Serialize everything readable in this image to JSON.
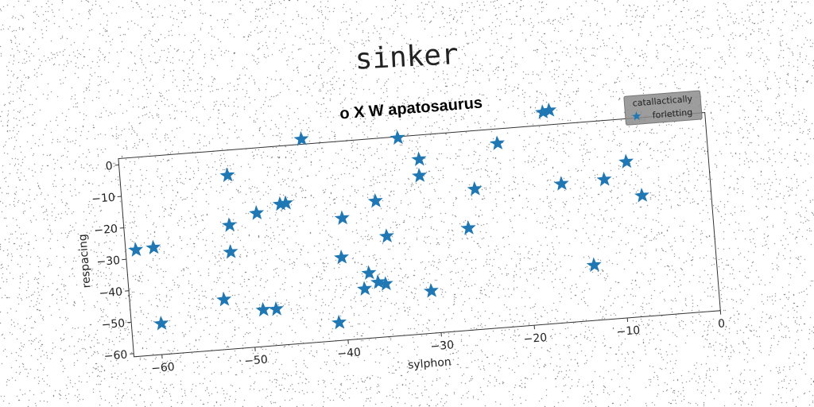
{
  "suptitle": "sinker",
  "chart_data": {
    "type": "scatter",
    "title": "o X W apatosaurus",
    "xlabel": "sylphon",
    "ylabel": "respacing",
    "xlim": [
      -63,
      0
    ],
    "ylim": [
      -61,
      2
    ],
    "xticks": [
      -60,
      -50,
      -40,
      -30,
      -20,
      -10,
      0
    ],
    "yticks": [
      0,
      -10,
      -20,
      -30,
      -40,
      -50,
      -60
    ],
    "grid": false,
    "legend": {
      "title": "catallactically",
      "placement": "top-right"
    },
    "series": [
      {
        "name": "forletting",
        "marker": "star",
        "color": "#1f77b4",
        "points": [
          {
            "x": -61.9,
            "y": -27.3
          },
          {
            "x": -60.0,
            "y": -27.0
          },
          {
            "x": -59.8,
            "y": -51.2
          },
          {
            "x": -52.9,
            "y": -45.2
          },
          {
            "x": -51.8,
            "y": -30.3
          },
          {
            "x": -51.7,
            "y": -21.8
          },
          {
            "x": -51.5,
            "y": -6.0
          },
          {
            "x": -48.7,
            "y": -18.7
          },
          {
            "x": -48.8,
            "y": -49.4
          },
          {
            "x": -47.4,
            "y": -49.5
          },
          {
            "x": -46.1,
            "y": -16.4
          },
          {
            "x": -45.5,
            "y": -16.3
          },
          {
            "x": -43.3,
            "y": 3.6
          },
          {
            "x": -40.8,
            "y": -55.3
          },
          {
            "x": -40.0,
            "y": -34.8
          },
          {
            "x": -39.6,
            "y": -22.4
          },
          {
            "x": -37.8,
            "y": -45.3
          },
          {
            "x": -37.2,
            "y": -40.4
          },
          {
            "x": -36.3,
            "y": -43.5
          },
          {
            "x": -35.9,
            "y": -17.8
          },
          {
            "x": -35.5,
            "y": -44.3
          },
          {
            "x": -35.0,
            "y": -29.2
          },
          {
            "x": -33.0,
            "y": 1.6
          },
          {
            "x": -30.9,
            "y": -5.7
          },
          {
            "x": -31.0,
            "y": -10.9
          },
          {
            "x": -30.7,
            "y": -47.6
          },
          {
            "x": -26.2,
            "y": -28.7
          },
          {
            "x": -25.2,
            "y": -16.5
          },
          {
            "x": -22.4,
            "y": -2.6
          },
          {
            "x": -17.3,
            "y": 6.1
          },
          {
            "x": -16.6,
            "y": 6.5
          },
          {
            "x": -15.9,
            "y": -17.0
          },
          {
            "x": -13.1,
            "y": -43.5
          },
          {
            "x": -11.3,
            "y": -16.7
          },
          {
            "x": -8.8,
            "y": -11.6
          },
          {
            "x": -7.4,
            "y": -22.7
          }
        ]
      }
    ]
  }
}
